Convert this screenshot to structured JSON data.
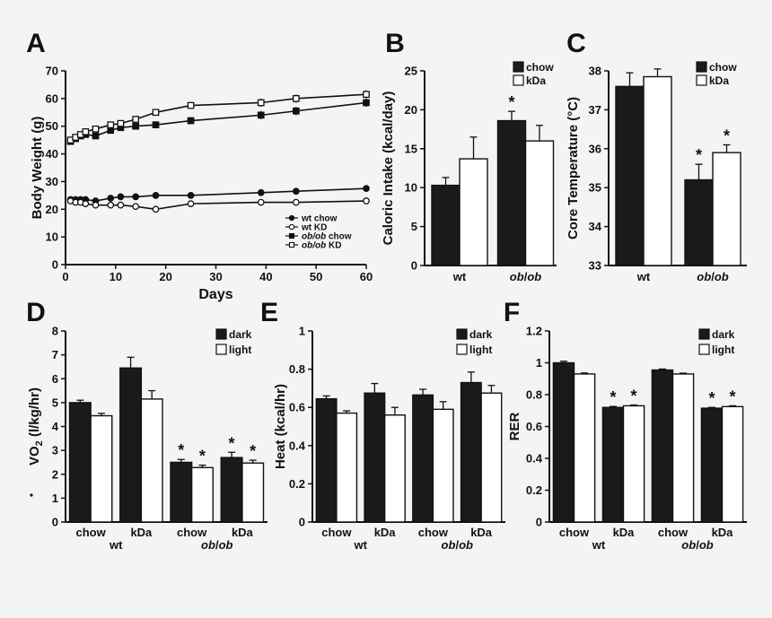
{
  "chart_data": [
    {
      "panel": "A",
      "type": "line",
      "ylabel": "Body Weight (g)",
      "xlabel": "Days",
      "xlim": [
        0,
        60
      ],
      "ylim": [
        0,
        70
      ],
      "xticks": [
        "0",
        "10",
        "20",
        "30",
        "40",
        "50",
        "60"
      ],
      "yticks": [
        "0",
        "10",
        "20",
        "30",
        "40",
        "50",
        "60",
        "70"
      ],
      "legend_position": "bottom-right",
      "series": [
        {
          "name": "wt chow",
          "name_italic": "",
          "name_rest": "wt chow",
          "marker": "filled-circle",
          "x": [
            1,
            2,
            3,
            4,
            6,
            9,
            11,
            14,
            18,
            25,
            39,
            46,
            60
          ],
          "y": [
            23.5,
            23.5,
            23.5,
            23.5,
            23,
            24,
            24.5,
            24.5,
            25,
            25,
            26,
            26.5,
            27.5
          ],
          "err": [
            0.5,
            0.5,
            0.5,
            0.5,
            0.5,
            0.5,
            0.5,
            0.5,
            0.5,
            0.5,
            0.5,
            0.6,
            0.6
          ]
        },
        {
          "name": "wt KD",
          "name_italic": "",
          "name_rest": "wt KD",
          "marker": "open-circle",
          "x": [
            1,
            2,
            3,
            4,
            6,
            9,
            11,
            14,
            18,
            25,
            39,
            46,
            60
          ],
          "y": [
            23,
            22.5,
            22.5,
            22,
            21.5,
            21.5,
            21.5,
            21,
            20,
            22,
            22.5,
            22.5,
            23
          ],
          "err": [
            0.5,
            0.5,
            0.5,
            0.5,
            0.5,
            0.5,
            0.5,
            0.5,
            0.5,
            0.5,
            0.5,
            0.5,
            0.5
          ]
        },
        {
          "name": "ob/ob chow",
          "name_italic": "ob/ob",
          "name_rest": " chow",
          "marker": "filled-square",
          "x": [
            1,
            2,
            3,
            4,
            6,
            9,
            11,
            14,
            18,
            25,
            39,
            46,
            60
          ],
          "y": [
            44.5,
            45.5,
            46.5,
            47,
            46.5,
            48.5,
            49.5,
            50,
            50.5,
            52,
            54,
            55.5,
            58.5
          ],
          "err": [
            1,
            1,
            1,
            1,
            1,
            1,
            1,
            1,
            1,
            1.2,
            1.5,
            1.5,
            1.5
          ]
        },
        {
          "name": "ob/ob KD",
          "name_italic": "ob/ob",
          "name_rest": " KD",
          "marker": "open-square",
          "x": [
            1,
            2,
            3,
            4,
            6,
            9,
            11,
            14,
            18,
            25,
            39,
            46,
            60
          ],
          "y": [
            45,
            46,
            47,
            48,
            49,
            50.5,
            51,
            52.5,
            55,
            57.5,
            58.5,
            60,
            61.5
          ],
          "err": [
            1,
            1,
            1,
            1,
            1,
            1,
            1,
            1,
            1,
            1.2,
            1.5,
            1.5,
            1.5
          ]
        }
      ]
    },
    {
      "panel": "B",
      "type": "bar",
      "ylabel": "Caloric Intake (kcal/day)",
      "ylim": [
        0,
        25
      ],
      "yticks": [
        "0",
        "5",
        "10",
        "15",
        "20",
        "25"
      ],
      "groups": [
        {
          "label": "wt",
          "italic": false
        },
        {
          "label": "ob/ob",
          "italic": true
        }
      ],
      "series": [
        {
          "name": "chow",
          "fill": "#1a1a1a",
          "values": [
            10.3,
            18.6
          ],
          "err": [
            1.0,
            1.2
          ]
        },
        {
          "name": "kDa",
          "fill": "#ffffff",
          "values": [
            13.7,
            16.0
          ],
          "err": [
            2.8,
            2.0
          ]
        }
      ],
      "significance": [
        {
          "group": 1,
          "series": 0,
          "label": "*"
        }
      ]
    },
    {
      "panel": "C",
      "type": "bar",
      "ylabel": "Core Temperature (°C)",
      "ylim": [
        33,
        38
      ],
      "yticks": [
        "33",
        "34",
        "35",
        "36",
        "37",
        "38"
      ],
      "groups": [
        {
          "label": "wt",
          "italic": false
        },
        {
          "label": "ob/ob",
          "italic": true
        }
      ],
      "series": [
        {
          "name": "chow",
          "fill": "#1a1a1a",
          "values": [
            37.6,
            35.2
          ],
          "err": [
            0.35,
            0.4
          ]
        },
        {
          "name": "kDa",
          "fill": "#ffffff",
          "values": [
            37.85,
            35.9
          ],
          "err": [
            0.2,
            0.2
          ]
        }
      ],
      "significance": [
        {
          "group": 1,
          "series": 0,
          "label": "*"
        },
        {
          "group": 1,
          "series": 1,
          "label": "*"
        }
      ]
    },
    {
      "panel": "D",
      "type": "bar",
      "ylabel": "VO2 (l/kg/hr)",
      "ylabel_parts": {
        "main": "VO",
        "sub": "2",
        "rest": " (l/kg/hr)"
      },
      "ylim": [
        0,
        8
      ],
      "yticks": [
        "0",
        "1",
        "2",
        "3",
        "4",
        "5",
        "6",
        "7",
        "8"
      ],
      "categories": [
        "chow",
        "kDa",
        "chow",
        "kDa"
      ],
      "group_labels": [
        {
          "label": "wt",
          "italic": false
        },
        {
          "label": "ob/ob",
          "italic": true
        }
      ],
      "series": [
        {
          "name": "dark",
          "fill": "#1a1a1a",
          "values": [
            5.0,
            6.45,
            2.5,
            2.7
          ],
          "err": [
            0.1,
            0.45,
            0.12,
            0.22
          ]
        },
        {
          "name": "light",
          "fill": "#ffffff",
          "values": [
            4.45,
            5.15,
            2.28,
            2.47
          ],
          "err": [
            0.1,
            0.35,
            0.1,
            0.12
          ]
        }
      ],
      "significance": [
        {
          "cat": 2,
          "series": 0,
          "label": "*"
        },
        {
          "cat": 2,
          "series": 1,
          "label": "*"
        },
        {
          "cat": 3,
          "series": 0,
          "label": "*"
        },
        {
          "cat": 3,
          "series": 1,
          "label": "*"
        }
      ]
    },
    {
      "panel": "E",
      "type": "bar",
      "ylabel": "Heat (kcal/hr)",
      "ylim": [
        0,
        1
      ],
      "yticks": [
        "0",
        "0.2",
        "0.4",
        "0.6",
        "0.8",
        "1"
      ],
      "categories": [
        "chow",
        "kDa",
        "chow",
        "kDa"
      ],
      "group_labels": [
        {
          "label": "wt",
          "italic": false
        },
        {
          "label": "ob/ob",
          "italic": true
        }
      ],
      "series": [
        {
          "name": "dark",
          "fill": "#1a1a1a",
          "values": [
            0.645,
            0.675,
            0.665,
            0.73
          ],
          "err": [
            0.015,
            0.05,
            0.03,
            0.055
          ]
        },
        {
          "name": "light",
          "fill": "#ffffff",
          "values": [
            0.57,
            0.56,
            0.59,
            0.675
          ],
          "err": [
            0.012,
            0.04,
            0.04,
            0.04
          ]
        }
      ],
      "significance": []
    },
    {
      "panel": "F",
      "type": "bar",
      "ylabel": "RER",
      "ylim": [
        0,
        1.2
      ],
      "yticks": [
        "0",
        "0.2",
        "0.4",
        "0.6",
        "0.8",
        "1",
        "1.2"
      ],
      "categories": [
        "chow",
        "kDa",
        "chow",
        "kDa"
      ],
      "group_labels": [
        {
          "label": "wt",
          "italic": false
        },
        {
          "label": "ob/ob",
          "italic": true
        }
      ],
      "series": [
        {
          "name": "dark",
          "fill": "#1a1a1a",
          "values": [
            1.0,
            0.72,
            0.955,
            0.715
          ],
          "err": [
            0.01,
            0.006,
            0.006,
            0.005
          ]
        },
        {
          "name": "light",
          "fill": "#ffffff",
          "values": [
            0.93,
            0.73,
            0.93,
            0.725
          ],
          "err": [
            0.006,
            0.005,
            0.005,
            0.005
          ]
        }
      ],
      "significance": [
        {
          "cat": 1,
          "series": 0,
          "label": "*"
        },
        {
          "cat": 1,
          "series": 1,
          "label": "*"
        },
        {
          "cat": 3,
          "series": 0,
          "label": "*"
        },
        {
          "cat": 3,
          "series": 1,
          "label": "*"
        }
      ]
    }
  ]
}
